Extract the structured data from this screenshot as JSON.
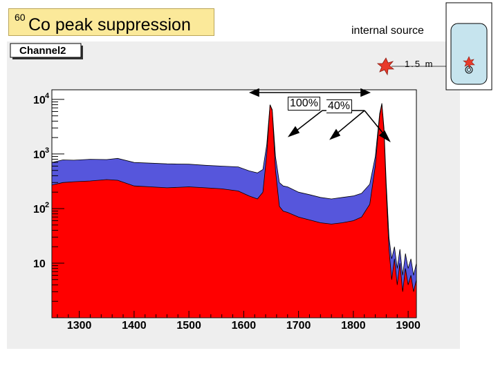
{
  "header": {
    "isotope_sup": "60",
    "title": "Co peak suppression",
    "internal_source": "internal source",
    "distance": "1.5 m",
    "channel_label": "Channel2",
    "pct_left": "100%",
    "pct_right": "40%"
  },
  "colors": {
    "frame_bg": "#eeeeee",
    "plot_bg": "#ffffff",
    "series_blue": "#5656dc",
    "series_red": "#ff0000",
    "title_bg": "#fbe99a",
    "detector": "#c6e4ee"
  },
  "chart_data": {
    "type": "area",
    "title": "",
    "xlabel": "",
    "ylabel": "",
    "xlim": [
      1250,
      1915
    ],
    "ylim": [
      1,
      15000
    ],
    "log_y": true,
    "x_ticks": [
      1300,
      1400,
      1500,
      1600,
      1700,
      1800,
      1900
    ],
    "y_ticks": [
      {
        "base": "10",
        "exp": "4",
        "value": 10000
      },
      {
        "base": "10",
        "exp": "3",
        "value": 1000
      },
      {
        "base": "10",
        "exp": "2",
        "value": 100
      },
      {
        "base": "10",
        "exp": "",
        "value": 10
      }
    ],
    "series": [
      {
        "color": "#5656dc",
        "x": [
          1250,
          1270,
          1290,
          1320,
          1350,
          1370,
          1400,
          1430,
          1460,
          1500,
          1530,
          1560,
          1590,
          1610,
          1625,
          1635,
          1642,
          1648,
          1652,
          1658,
          1665,
          1672,
          1680,
          1700,
          1720,
          1740,
          1760,
          1780,
          1800,
          1815,
          1830,
          1840,
          1848,
          1852,
          1856,
          1860,
          1865,
          1870,
          1875,
          1880,
          1885,
          1890,
          1895,
          1900,
          1905,
          1910,
          1915
        ],
        "y": [
          700,
          780,
          770,
          800,
          790,
          830,
          700,
          680,
          660,
          650,
          620,
          600,
          580,
          490,
          450,
          520,
          1500,
          8000,
          6500,
          900,
          300,
          260,
          250,
          200,
          180,
          160,
          150,
          160,
          170,
          190,
          280,
          900,
          5500,
          8500,
          3000,
          300,
          30,
          12,
          20,
          8,
          18,
          6,
          15,
          8,
          12,
          6,
          10
        ]
      },
      {
        "color": "#ff0000",
        "x": [
          1250,
          1270,
          1290,
          1320,
          1350,
          1370,
          1400,
          1430,
          1460,
          1500,
          1530,
          1560,
          1590,
          1610,
          1625,
          1635,
          1642,
          1648,
          1652,
          1658,
          1665,
          1672,
          1680,
          1700,
          1720,
          1740,
          1760,
          1780,
          1800,
          1815,
          1830,
          1840,
          1848,
          1852,
          1856,
          1860,
          1865,
          1870,
          1875,
          1880,
          1885,
          1890,
          1895,
          1900,
          1905,
          1910,
          1915
        ],
        "y": [
          270,
          300,
          310,
          320,
          340,
          330,
          260,
          250,
          240,
          250,
          240,
          230,
          210,
          170,
          150,
          200,
          1000,
          8000,
          6200,
          500,
          110,
          90,
          85,
          70,
          62,
          55,
          52,
          55,
          60,
          70,
          120,
          600,
          5000,
          8200,
          2500,
          200,
          18,
          5,
          12,
          4,
          10,
          3,
          8,
          4,
          6,
          3,
          5
        ]
      }
    ]
  }
}
